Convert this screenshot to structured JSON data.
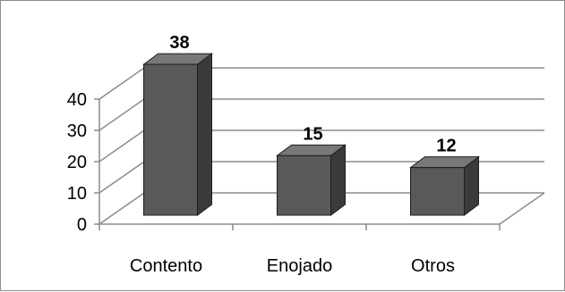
{
  "chart_data": {
    "type": "bar",
    "style": "3d-column",
    "categories": [
      "Contento",
      "Enojado",
      "Otros"
    ],
    "values": [
      38,
      15,
      12
    ],
    "data_labels": [
      "38",
      "15",
      "12"
    ],
    "y_ticks": [
      "0",
      "10",
      "20",
      "30",
      "40"
    ],
    "ylim": [
      0,
      40
    ],
    "grid": true,
    "legend": "none",
    "title": "",
    "xlabel": "",
    "ylabel": ""
  },
  "colors": {
    "bar_front": "#595959",
    "bar_side": "#3a3a3a",
    "bar_top": "#787878",
    "bar_edge": "#1e1e1e",
    "grid": "#8c8c8c",
    "wall_line": "#8c8c8c",
    "text": "#000000",
    "border": "#8c8c8c"
  }
}
